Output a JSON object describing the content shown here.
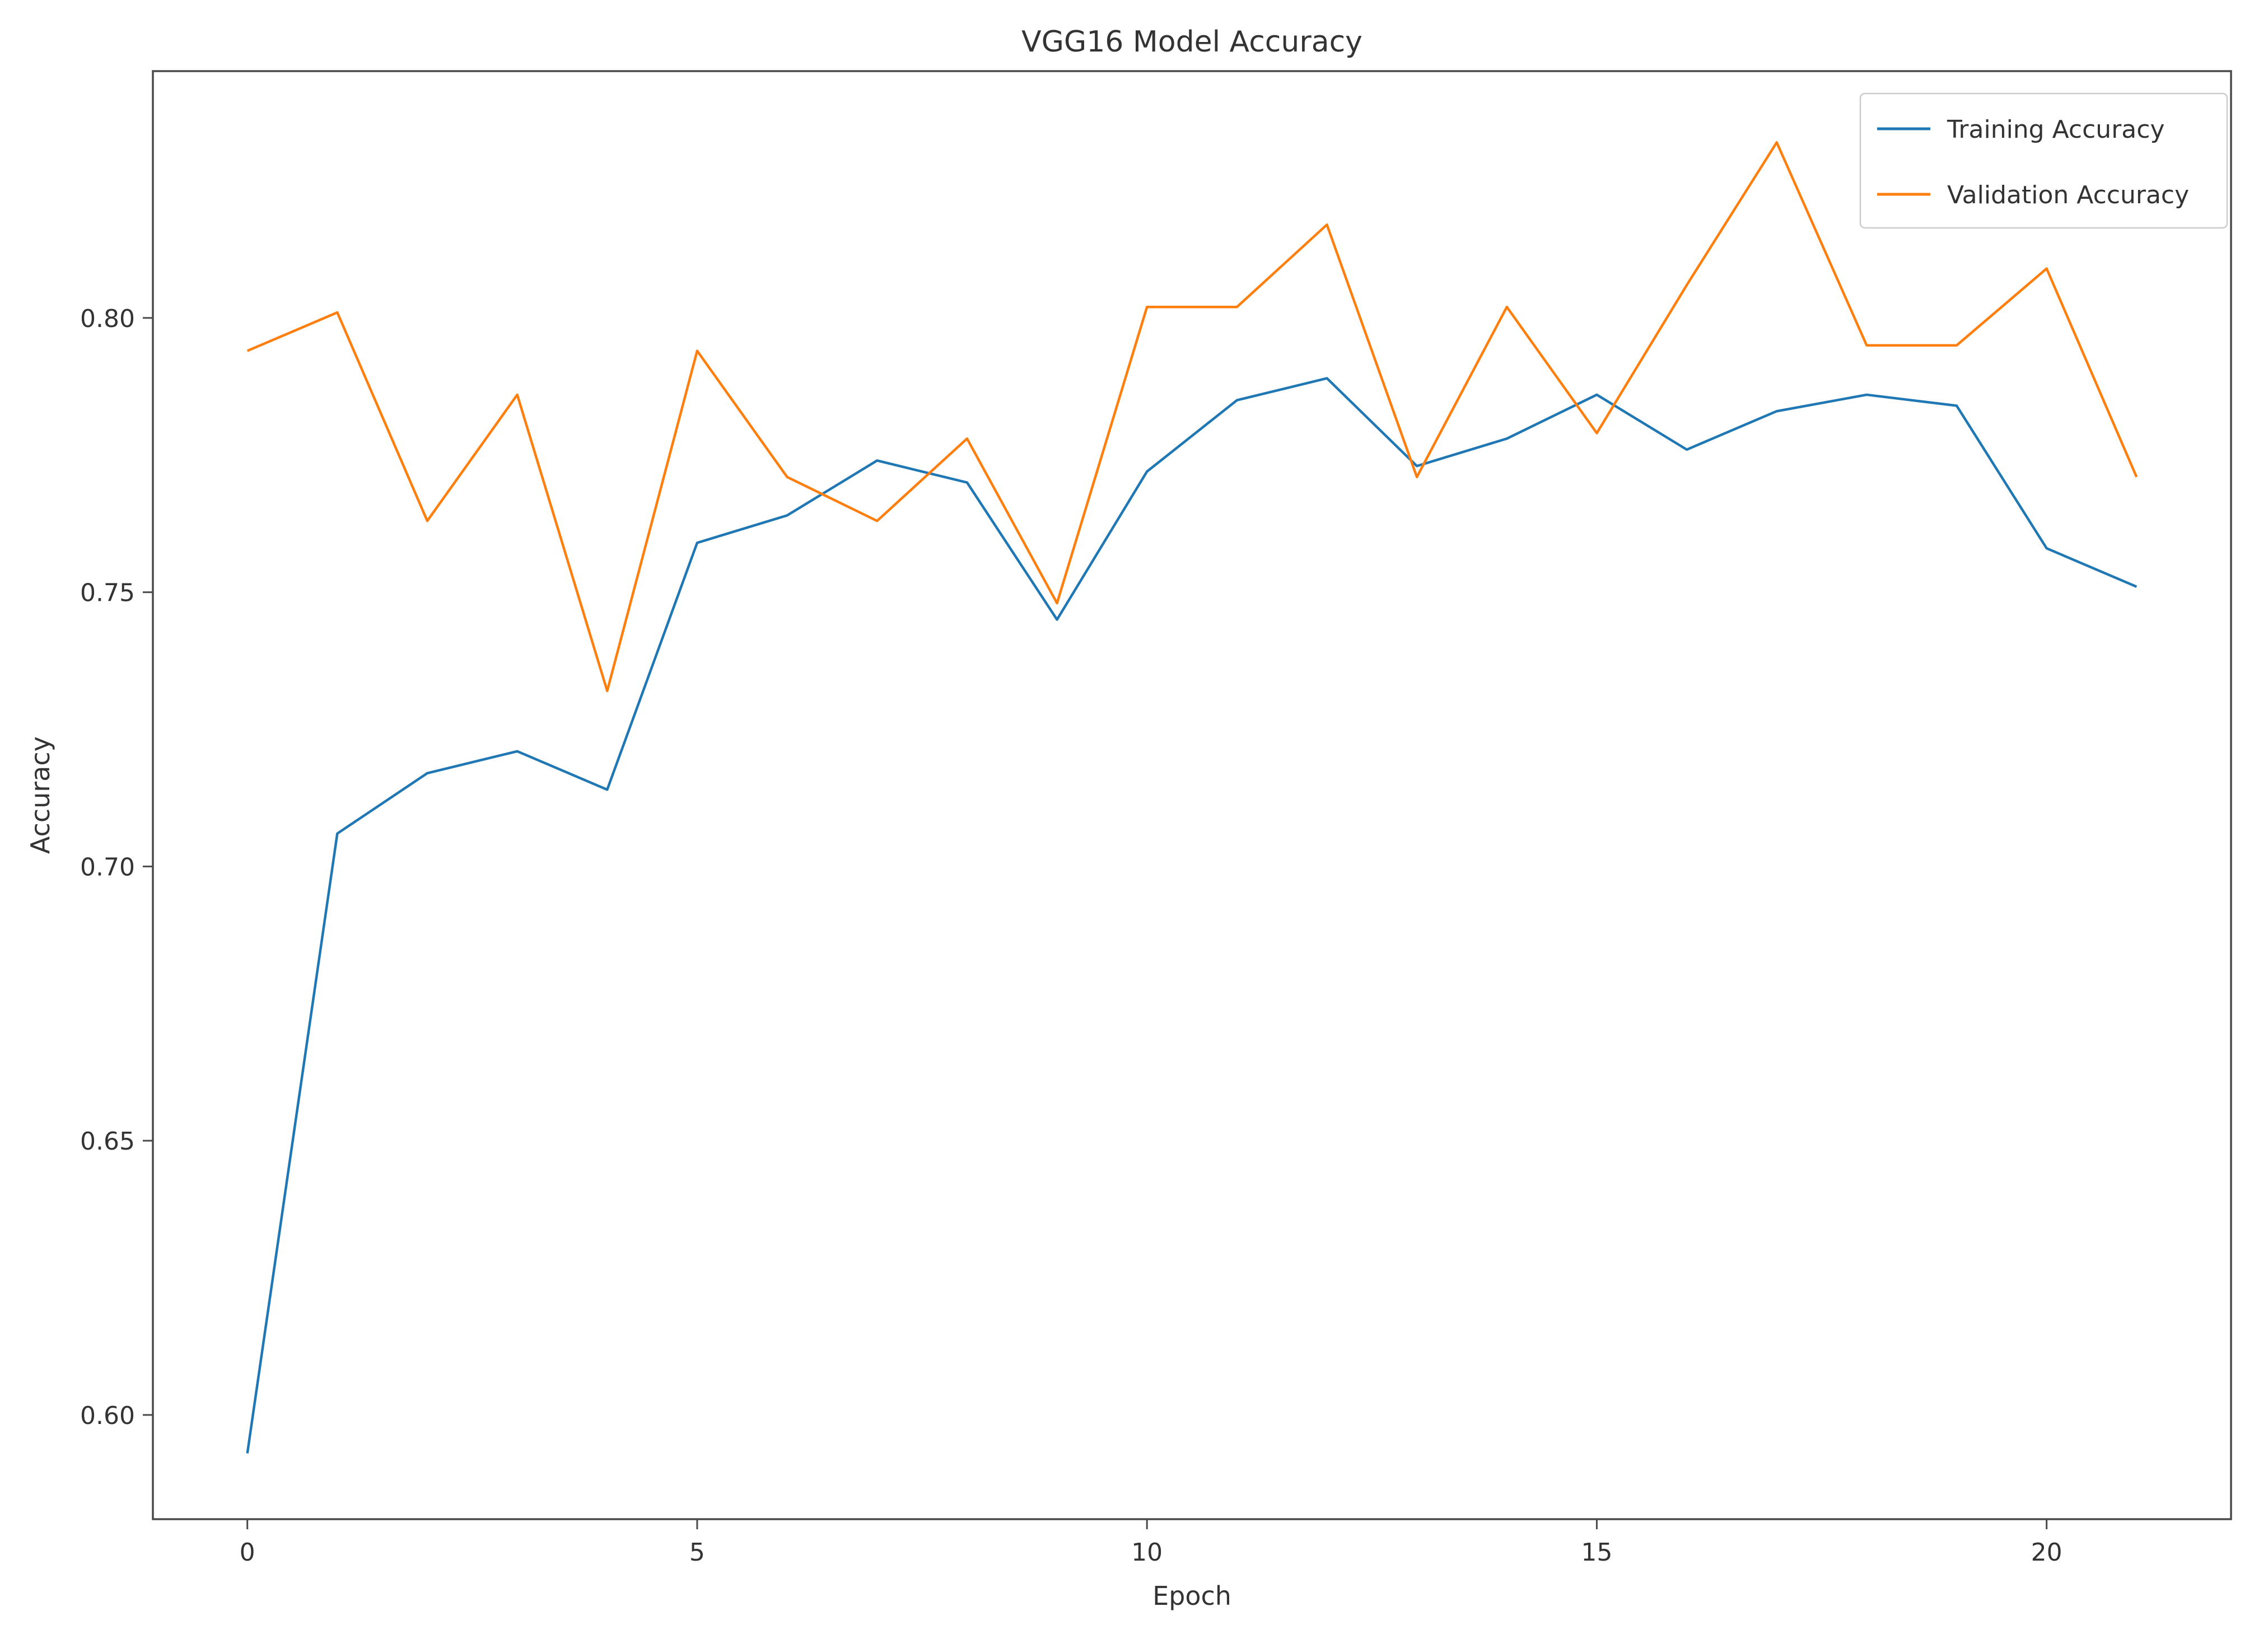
{
  "chart_data": {
    "type": "line",
    "title": "VGG16 Model Accuracy",
    "xlabel": "Epoch",
    "ylabel": "Accuracy",
    "x": [
      0,
      1,
      2,
      3,
      4,
      5,
      6,
      7,
      8,
      9,
      10,
      11,
      12,
      13,
      14,
      15,
      16,
      17,
      18,
      19,
      20,
      21
    ],
    "series": [
      {
        "name": "Training Accuracy",
        "color": "#1f77b4",
        "values": [
          0.593,
          0.706,
          0.717,
          0.721,
          0.714,
          0.759,
          0.764,
          0.774,
          0.77,
          0.745,
          0.772,
          0.785,
          0.789,
          0.773,
          0.778,
          0.786,
          0.776,
          0.783,
          0.786,
          0.784,
          0.758,
          0.751
        ]
      },
      {
        "name": "Validation Accuracy",
        "color": "#ff7f0e",
        "values": [
          0.794,
          0.801,
          0.763,
          0.786,
          0.732,
          0.794,
          0.771,
          0.763,
          0.778,
          0.748,
          0.802,
          0.802,
          0.817,
          0.771,
          0.802,
          0.779,
          0.806,
          0.832,
          0.795,
          0.795,
          0.809,
          0.771
        ]
      }
    ],
    "xlim": [
      -1.05,
      22.05
    ],
    "ylim": [
      0.581,
      0.845
    ],
    "xticks": [
      0,
      5,
      10,
      15,
      20
    ],
    "yticks": [
      0.6,
      0.65,
      0.7,
      0.75,
      0.8
    ],
    "grid": false,
    "legend_position": "upper right",
    "background_color": "#ffffff",
    "text_color": "#333333"
  }
}
